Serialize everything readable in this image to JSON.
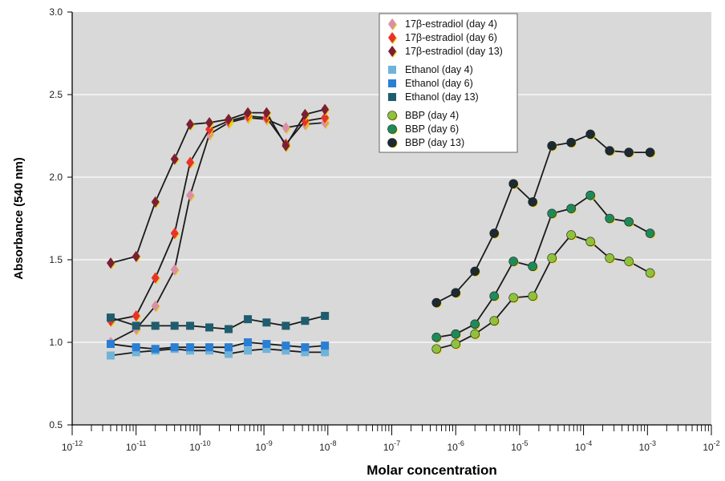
{
  "chart_data": {
    "type": "line",
    "title": "",
    "xlabel": "Molar concentration",
    "ylabel": "Absorbance (540 nm)",
    "x_scale": "log",
    "xlim": [
      1e-12,
      0.01
    ],
    "ylim": [
      0.5,
      3.0
    ],
    "y_ticks": [
      0.5,
      1.0,
      1.5,
      2.0,
      2.5,
      3.0
    ],
    "y_tick_labels": [
      "0.5",
      "1.0",
      "1.5",
      "2.0",
      "2.5",
      "3.0"
    ],
    "x_tick_exponents": [
      -12,
      -11,
      -10,
      -9,
      -8,
      -7,
      -6,
      -5,
      -4,
      -3,
      -2
    ],
    "grid": true,
    "background": "#d9d9d9",
    "legend_position": "top-center",
    "series": [
      {
        "name": "17β-estradiol (day 4)",
        "marker": "diamond",
        "color": "#d98fa6",
        "connected": true,
        "x": [
          4e-12,
          1e-11,
          2e-11,
          4e-11,
          7e-11,
          1.4e-10,
          2.8e-10,
          5.6e-10,
          1.1e-09,
          2.2e-09,
          4.4e-09,
          9e-09
        ],
        "y": [
          1.0,
          1.08,
          1.22,
          1.44,
          1.89,
          2.26,
          2.33,
          2.36,
          2.35,
          2.3,
          2.32,
          2.33
        ]
      },
      {
        "name": "17β-estradiol (day 6)",
        "marker": "diamond",
        "color": "#e8332a",
        "connected": true,
        "x": [
          4e-12,
          1e-11,
          2e-11,
          4e-11,
          7e-11,
          1.4e-10,
          2.8e-10,
          5.6e-10,
          1.1e-09,
          2.2e-09,
          4.4e-09,
          9e-09
        ],
        "y": [
          1.13,
          1.16,
          1.39,
          1.66,
          2.09,
          2.29,
          2.34,
          2.37,
          2.36,
          2.2,
          2.34,
          2.36
        ]
      },
      {
        "name": "17β-estradiol (day 13)",
        "marker": "diamond",
        "color": "#7a1f35",
        "connected": true,
        "x": [
          4e-12,
          1e-11,
          2e-11,
          4e-11,
          7e-11,
          1.4e-10,
          2.8e-10,
          5.6e-10,
          1.1e-09,
          2.2e-09,
          4.4e-09,
          9e-09
        ],
        "y": [
          1.48,
          1.52,
          1.85,
          2.11,
          2.32,
          2.33,
          2.35,
          2.39,
          2.39,
          2.19,
          2.38,
          2.41
        ]
      },
      {
        "name": "Ethanol (day 4)",
        "marker": "square",
        "color": "#6fb3d9",
        "connected": true,
        "x": [
          4e-12,
          1e-11,
          2e-11,
          4e-11,
          7e-11,
          1.4e-10,
          2.8e-10,
          5.6e-10,
          1.1e-09,
          2.2e-09,
          4.4e-09,
          9e-09
        ],
        "y": [
          0.92,
          0.94,
          0.95,
          0.96,
          0.95,
          0.95,
          0.93,
          0.95,
          0.96,
          0.95,
          0.94,
          0.94
        ]
      },
      {
        "name": "Ethanol (day 6)",
        "marker": "square",
        "color": "#2a7fd4",
        "connected": true,
        "x": [
          4e-12,
          1e-11,
          2e-11,
          4e-11,
          7e-11,
          1.4e-10,
          2.8e-10,
          5.6e-10,
          1.1e-09,
          2.2e-09,
          4.4e-09,
          9e-09
        ],
        "y": [
          0.99,
          0.97,
          0.96,
          0.97,
          0.97,
          0.97,
          0.97,
          1.0,
          0.99,
          0.98,
          0.97,
          0.98
        ]
      },
      {
        "name": "Ethanol (day 13)",
        "marker": "square",
        "color": "#1f5d6e",
        "connected": true,
        "x": [
          4e-12,
          1e-11,
          2e-11,
          4e-11,
          7e-11,
          1.4e-10,
          2.8e-10,
          5.6e-10,
          1.1e-09,
          2.2e-09,
          4.4e-09,
          9e-09
        ],
        "y": [
          1.15,
          1.1,
          1.1,
          1.1,
          1.1,
          1.09,
          1.08,
          1.14,
          1.12,
          1.1,
          1.13,
          1.16
        ]
      },
      {
        "name": "BBP (day 4)",
        "marker": "circle",
        "color": "#8fc23c",
        "connected": true,
        "x": [
          5e-07,
          1e-06,
          2e-06,
          4e-06,
          8e-06,
          1.6e-05,
          3.2e-05,
          6.4e-05,
          0.000128,
          0.000256,
          0.000512,
          0.0011
        ],
        "y": [
          0.96,
          0.99,
          1.05,
          1.13,
          1.27,
          1.28,
          1.51,
          1.65,
          1.61,
          1.51,
          1.49,
          1.42
        ]
      },
      {
        "name": "BBP (day 6)",
        "marker": "circle",
        "color": "#1e8a5a",
        "connected": true,
        "x": [
          5e-07,
          1e-06,
          2e-06,
          4e-06,
          8e-06,
          1.6e-05,
          3.2e-05,
          6.4e-05,
          0.000128,
          0.000256,
          0.000512,
          0.0011
        ],
        "y": [
          1.03,
          1.05,
          1.11,
          1.28,
          1.49,
          1.46,
          1.78,
          1.81,
          1.89,
          1.75,
          1.73,
          1.66
        ]
      },
      {
        "name": "BBP (day 13)",
        "marker": "circle",
        "color": "#1b2a33",
        "connected": true,
        "x": [
          5e-07,
          1e-06,
          2e-06,
          4e-06,
          8e-06,
          1.6e-05,
          3.2e-05,
          6.4e-05,
          0.000128,
          0.000256,
          0.000512,
          0.0011
        ],
        "y": [
          1.24,
          1.3,
          1.43,
          1.66,
          1.96,
          1.85,
          2.19,
          2.21,
          2.26,
          2.16,
          2.15,
          2.15
        ]
      }
    ]
  }
}
